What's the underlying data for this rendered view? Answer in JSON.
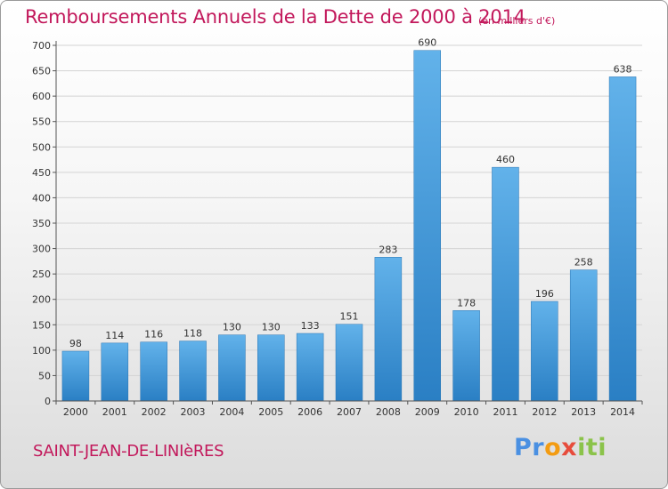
{
  "title": "Remboursements Annuels de la Dette de 2000 à 2014",
  "unit_note": "(en milliers d'€)",
  "place_name": "SAINT-JEAN-DE-LINIèRES",
  "logo": {
    "p1": "Pr",
    "p2": "o",
    "p3": "x",
    "p4": "iti"
  },
  "colors": {
    "bar": "#3a93d6",
    "title": "#c2185b"
  },
  "chart_data": {
    "type": "bar",
    "categories": [
      "2000",
      "2001",
      "2002",
      "2003",
      "2004",
      "2005",
      "2006",
      "2007",
      "2008",
      "2009",
      "2010",
      "2011",
      "2012",
      "2013",
      "2014"
    ],
    "values": [
      98,
      114,
      116,
      118,
      130,
      130,
      133,
      151,
      283,
      690,
      178,
      460,
      196,
      258,
      638
    ],
    "ylim": [
      0,
      700
    ],
    "yticks": [
      0,
      50,
      100,
      150,
      200,
      250,
      300,
      350,
      400,
      450,
      500,
      550,
      600,
      650,
      700
    ],
    "grid": true
  }
}
